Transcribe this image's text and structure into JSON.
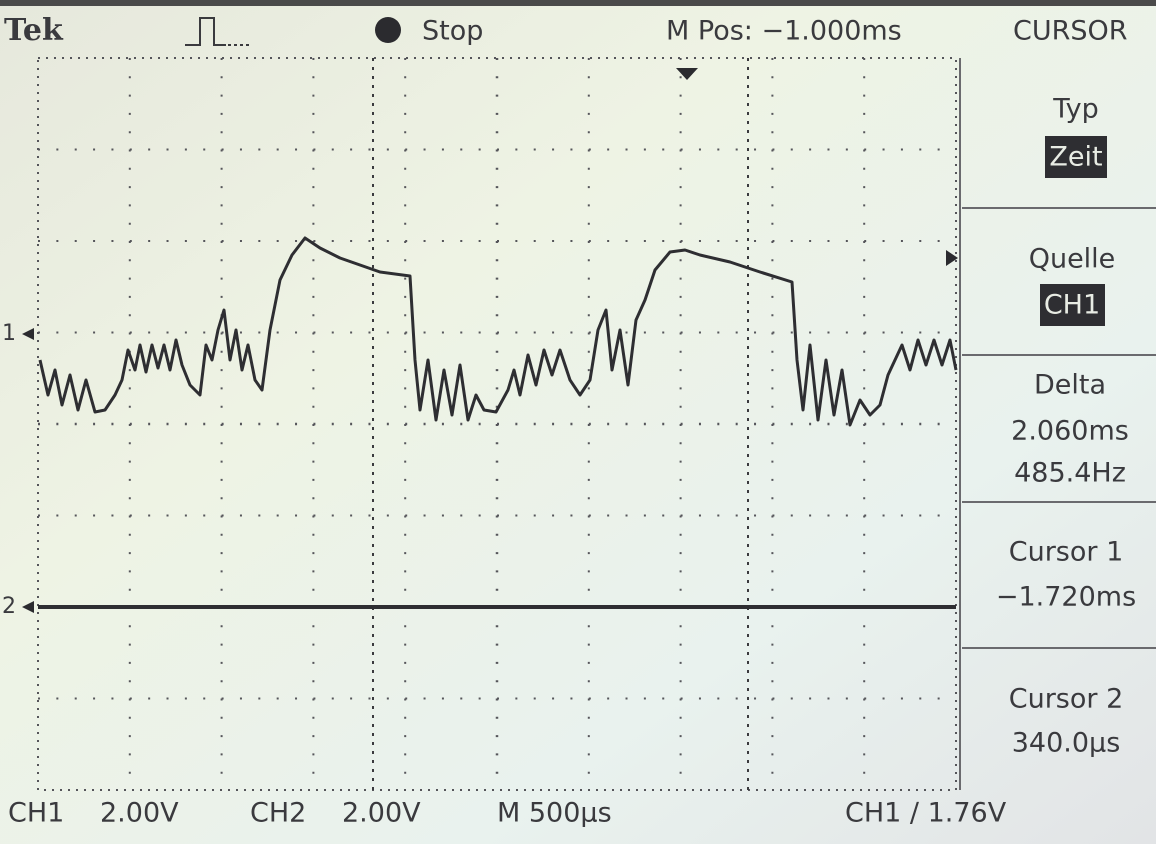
{
  "header": {
    "brand": "Tek",
    "status": "Stop",
    "position": "M Pos: −1.000ms",
    "mode": "CURSOR"
  },
  "menu": [
    {
      "label": "Typ",
      "value": "Zeit"
    },
    {
      "label": "Quelle",
      "value": "CH1"
    },
    {
      "label": "Delta",
      "lines": [
        "2.060ms",
        "485.4Hz"
      ]
    },
    {
      "label": "Cursor 1",
      "lines": [
        "−1.720ms"
      ]
    },
    {
      "label": "Cursor 2",
      "lines": [
        "340.0µs"
      ]
    }
  ],
  "markers": {
    "ch1": "1",
    "ch2": "2"
  },
  "footer": {
    "ch1": "CH1",
    "ch1_scale": "2.00V",
    "ch2": "CH2",
    "ch2_scale": "2.00V",
    "timebase": "M 500µs",
    "trigger": "CH1 ∕ 1.76V"
  }
}
